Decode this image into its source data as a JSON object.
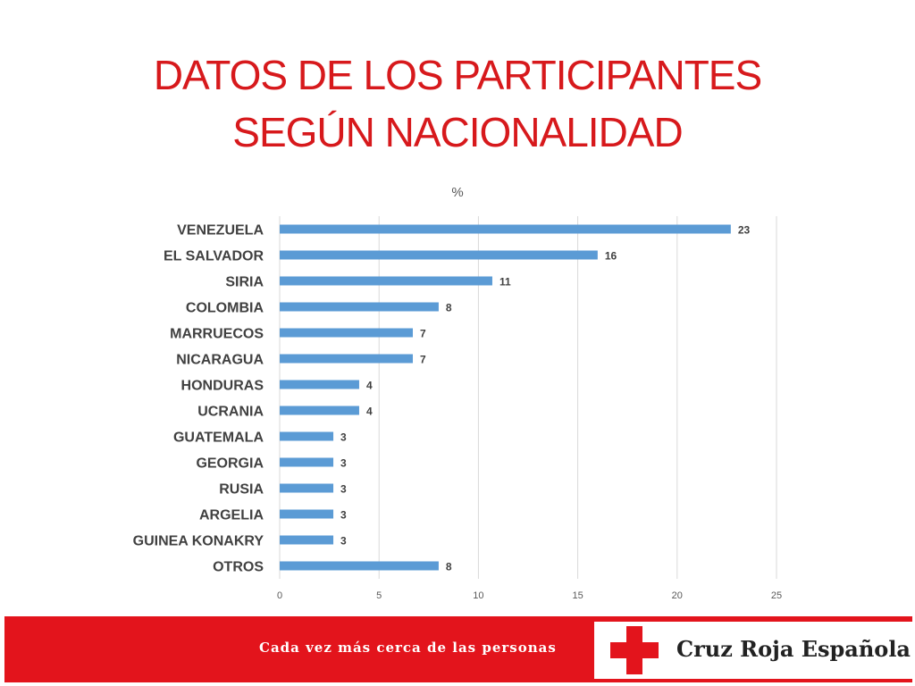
{
  "title": {
    "line1": "DATOS DE LOS PARTICIPANTES",
    "line2": "SEGÚN NACIONALIDAD"
  },
  "chart_data": {
    "type": "bar",
    "orientation": "horizontal",
    "title": "%",
    "categories": [
      "VENEZUELA",
      "EL SALVADOR",
      "SIRIA",
      "COLOMBIA",
      "MARRUECOS",
      "NICARAGUA",
      "HONDURAS",
      "UCRANIA",
      "GUATEMALA",
      "GEORGIA",
      "RUSIA",
      "ARGELIA",
      "GUINEA KONAKRY",
      "OTROS"
    ],
    "values": [
      22.7,
      16,
      10.7,
      8,
      6.7,
      6.7,
      4,
      4,
      2.7,
      2.7,
      2.7,
      2.7,
      2.7,
      8
    ],
    "data_labels": [
      "23",
      "16",
      "11",
      "8",
      "7",
      "7",
      "4",
      "4",
      "3",
      "3",
      "3",
      "3",
      "3",
      "8"
    ],
    "xlim": [
      0,
      25
    ],
    "xticks": [
      0,
      5,
      10,
      15,
      20,
      25
    ],
    "grid": true,
    "bar_color": "#5b9bd5"
  },
  "footer": {
    "tagline": "Cada vez más cerca de las personas",
    "brand": "Cruz Roja Española",
    "band_color": "#e3141c"
  }
}
